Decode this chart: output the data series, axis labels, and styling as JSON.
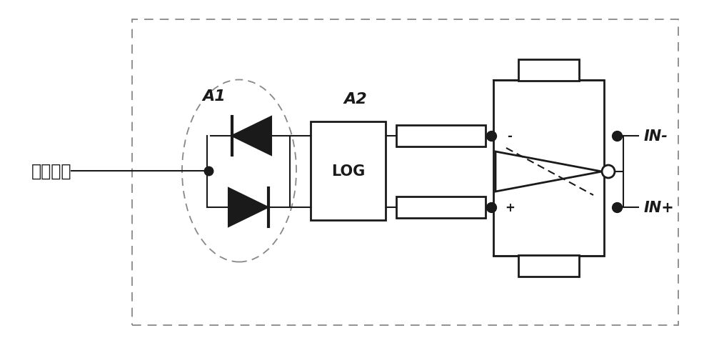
{
  "bg_color": "#ffffff",
  "line_color": "#1a1a1a",
  "dash_color": "#888888",
  "text_signal_input": "信号输入",
  "text_A1": "A1",
  "text_A2": "A2",
  "text_LOG": "LOG",
  "text_IN_plus": "IN+",
  "text_IN_minus": "IN-",
  "text_plus": "+",
  "text_minus": "-",
  "figw": 10.0,
  "figh": 4.81,
  "dpi": 100
}
